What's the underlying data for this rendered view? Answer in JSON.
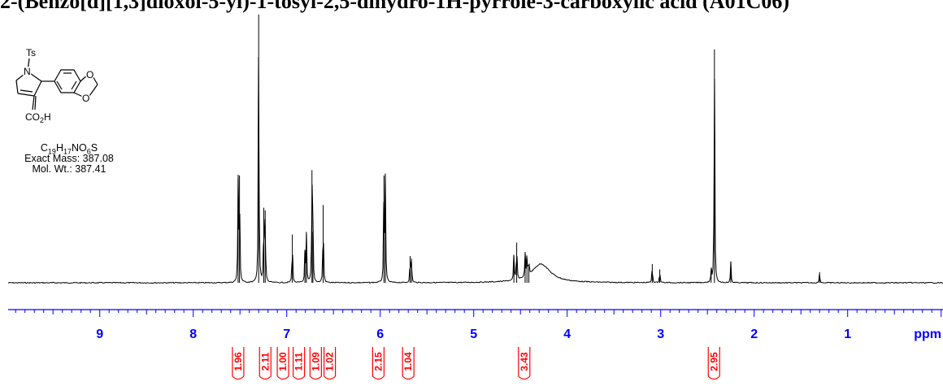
{
  "title": "2-(Benzo[d][1,3]dioxol-5-yl)-1-tosyl-2,5-dihydro-1H-pyrrole-3-carboxylic acid (A01C06)",
  "compound": {
    "formula": "C19H17NO6S",
    "exact_mass": "Exact Mass: 387.08",
    "mol_wt": "Mol. Wt.: 387.41",
    "labels": {
      "ts": "Ts",
      "n": "N",
      "acid": "CO2H",
      "o1": "O",
      "o2": "O"
    }
  },
  "colors": {
    "axis": "#0000ff",
    "integral": "#ff0000",
    "trace": "#000000"
  },
  "chart_data": {
    "type": "line",
    "xlabel": "ppm",
    "xlim": [
      9.98,
      -0.02
    ],
    "x_reversed": true,
    "ticks": [
      9,
      8,
      7,
      6,
      5,
      4,
      3,
      2,
      1
    ],
    "tick_labels": [
      "9",
      "8",
      "7",
      "6",
      "5",
      "4",
      "3",
      "2",
      "1"
    ],
    "ylim": [
      0,
      1
    ],
    "peaks": [
      {
        "ppm": 7.52,
        "height": 0.39,
        "width": 0.004
      },
      {
        "ppm": 7.505,
        "height": 0.4,
        "width": 0.004
      },
      {
        "ppm": 7.3,
        "height": 1.0,
        "width": 0.004
      },
      {
        "ppm": 7.245,
        "height": 0.28,
        "width": 0.004
      },
      {
        "ppm": 7.23,
        "height": 0.27,
        "width": 0.004
      },
      {
        "ppm": 6.94,
        "height": 0.18,
        "width": 0.004
      },
      {
        "ppm": 6.805,
        "height": 0.12,
        "width": 0.004
      },
      {
        "ppm": 6.79,
        "height": 0.19,
        "width": 0.004
      },
      {
        "ppm": 6.73,
        "height": 0.42,
        "width": 0.004
      },
      {
        "ppm": 6.72,
        "height": 0.19,
        "width": 0.004
      },
      {
        "ppm": 6.61,
        "height": 0.29,
        "width": 0.004
      },
      {
        "ppm": 5.96,
        "height": 0.4,
        "width": 0.004
      },
      {
        "ppm": 5.945,
        "height": 0.38,
        "width": 0.004
      },
      {
        "ppm": 5.68,
        "height": 0.1,
        "width": 0.004
      },
      {
        "ppm": 5.665,
        "height": 0.09,
        "width": 0.004
      },
      {
        "ppm": 4.57,
        "height": 0.1,
        "width": 0.004
      },
      {
        "ppm": 4.54,
        "height": 0.15,
        "width": 0.004
      },
      {
        "ppm": 4.45,
        "height": 0.09,
        "width": 0.004
      },
      {
        "ppm": 4.43,
        "height": 0.09,
        "width": 0.004
      },
      {
        "ppm": 4.41,
        "height": 0.06,
        "width": 0.004
      },
      {
        "ppm": 4.28,
        "height": 0.07,
        "width": 0.12
      },
      {
        "ppm": 3.09,
        "height": 0.07,
        "width": 0.004
      },
      {
        "ppm": 3.01,
        "height": 0.05,
        "width": 0.004
      },
      {
        "ppm": 2.46,
        "height": 0.05,
        "width": 0.004
      },
      {
        "ppm": 2.425,
        "height": 0.87,
        "width": 0.004
      },
      {
        "ppm": 2.25,
        "height": 0.08,
        "width": 0.004
      },
      {
        "ppm": 1.3,
        "height": 0.04,
        "width": 0.004
      }
    ],
    "integrals": [
      {
        "label": "1.96",
        "ppm": 7.52
      },
      {
        "label": "2.11",
        "ppm": 7.23
      },
      {
        "label": "1.00",
        "ppm": 7.04
      },
      {
        "label": "1.11",
        "ppm": 6.87
      },
      {
        "label": "1.09",
        "ppm": 6.69
      },
      {
        "label": "1.02",
        "ppm": 6.54
      },
      {
        "label": "2.15",
        "ppm": 6.02
      },
      {
        "label": "1.04",
        "ppm": 5.7
      },
      {
        "label": "3.43",
        "ppm": 4.46
      },
      {
        "label": "2.95",
        "ppm": 2.43
      }
    ]
  }
}
